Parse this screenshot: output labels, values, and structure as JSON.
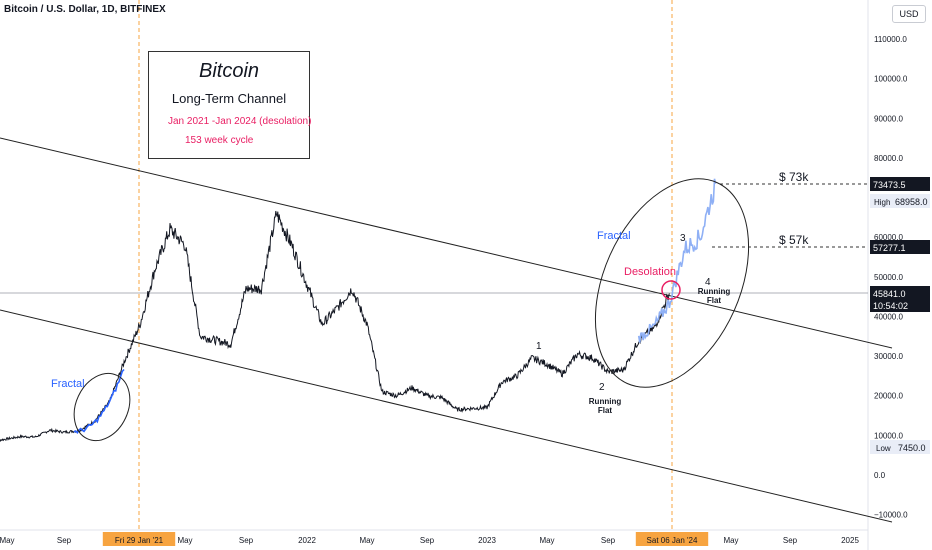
{
  "header": {
    "symbol": "Bitcoin / U.S. Dollar, 1D, BITFINEX",
    "currency": "USD"
  },
  "info_box": {
    "title": "Bitcoin",
    "subtitle": "Long-Term Channel",
    "date_range": "Jan 2021 -Jan 2024 (desolation)",
    "cycle": "153 week cycle"
  },
  "colors": {
    "candles": "#131722",
    "fractal": "#2962ff",
    "fractal_light": "#8fb0f5",
    "desolation": "#e91e63",
    "vline": "#f7a440",
    "axis_text": "#131722",
    "channel": "#222222"
  },
  "chart_data": {
    "type": "line",
    "title": "Bitcoin / U.S. Dollar, 1D, BITFINEX",
    "y_axis": {
      "ticks": [
        "110000.0",
        "100000.0",
        "90000.0",
        "80000.0",
        "70000.0",
        "60000.0",
        "50000.0",
        "40000.0",
        "30000.0",
        "20000.0",
        "10000.0",
        "0.0",
        "−10000.0"
      ],
      "tick_values": [
        110000,
        100000,
        90000,
        80000,
        70000,
        60000,
        50000,
        40000,
        30000,
        20000,
        10000,
        0,
        -10000
      ],
      "range": [
        -12500,
        125000
      ]
    },
    "x_axis": {
      "labels": [
        "May",
        "Sep",
        "Fri 29 Jan '21",
        "May",
        "Sep",
        "2022",
        "May",
        "Sep",
        "2023",
        "May",
        "Sep",
        "Sat 06 Jan '24",
        "May",
        "Sep",
        "2025"
      ],
      "label_dates": [
        "2020-05",
        "2020-09",
        "2021-01-29",
        "2021-05",
        "2021-09",
        "2022-01",
        "2022-05",
        "2022-09",
        "2023-01",
        "2023-05",
        "2023-09",
        "2024-01-06",
        "2024-05",
        "2024-09",
        "2025-01"
      ],
      "highlighted": [
        "Fri 29 Jan '21",
        "Sat 06 Jan '24"
      ]
    },
    "series": [
      {
        "role": "price",
        "x": [
          "2020-04",
          "2020-06",
          "2020-07",
          "2020-08",
          "2020-09",
          "2020-10",
          "2020-11",
          "2020-12",
          "2021-01",
          "2021-02",
          "2021-03",
          "2021-04",
          "2021-05",
          "2021-06",
          "2021-07",
          "2021-08",
          "2021-09",
          "2021-10",
          "2021-11",
          "2021-12",
          "2022-01",
          "2022-02",
          "2022-03",
          "2022-04",
          "2022-05",
          "2022-06",
          "2022-07",
          "2022-08",
          "2022-09",
          "2022-10",
          "2022-11",
          "2022-12",
          "2023-01",
          "2023-02",
          "2023-03",
          "2023-04",
          "2023-05",
          "2023-06",
          "2023-07",
          "2023-08",
          "2023-09",
          "2023-10",
          "2023-11",
          "2023-12",
          "2024-01"
        ],
        "y": [
          8500,
          9700,
          9600,
          11300,
          10800,
          11200,
          13500,
          18500,
          29000,
          38000,
          52000,
          62000,
          58000,
          35000,
          34000,
          33000,
          47000,
          47000,
          66000,
          58000,
          48000,
          38000,
          42000,
          47000,
          38000,
          21000,
          20000,
          22000,
          20000,
          19500,
          16500,
          16800,
          17000,
          23500,
          25000,
          29500,
          28000,
          25500,
          30500,
          29500,
          26000,
          26500,
          34000,
          37000,
          45800
        ]
      },
      {
        "role": "fractal",
        "x": [
          "2023-11",
          "2023-12",
          "2024-01",
          "2024-02",
          "2024-03",
          "2024-04"
        ],
        "y": [
          34500,
          37500,
          43500,
          57000,
          60000,
          73500
        ]
      }
    ],
    "channel": {
      "upper": {
        "x": [
          "2020-02",
          "2025-02"
        ],
        "y": [
          88000,
          31000
        ]
      },
      "lower": {
        "x": [
          "2020-02",
          "2025-02"
        ],
        "y": [
          43000,
          -12000
        ]
      }
    },
    "price_markers": [
      {
        "label": "73473.5",
        "value": 73473.5
      },
      {
        "label": "68958.0",
        "value": 68958.0,
        "prefix": "High"
      },
      {
        "label": "57277.1",
        "value": 57277.1
      },
      {
        "label": "45841.0",
        "value": 45841.0,
        "countdown": "10:54:02"
      },
      {
        "label": "7450.0",
        "value": 7450.0,
        "prefix": "Low"
      }
    ],
    "annotations": [
      {
        "text": "Fractal",
        "role": "fractal-left"
      },
      {
        "text": "Fractal",
        "role": "fractal-right"
      },
      {
        "text": "Desolation",
        "role": "desolation"
      },
      {
        "text": "$ 73k",
        "value": 73473.5
      },
      {
        "text": "$ 57k",
        "value": 57277.1
      },
      {
        "text": "1"
      },
      {
        "text": "2"
      },
      {
        "text": "Running",
        "note": "wave 2"
      },
      {
        "text": "Flat",
        "note": "wave 2"
      },
      {
        "text": "3"
      },
      {
        "text": "4"
      },
      {
        "text": "Running",
        "note": "wave 4"
      },
      {
        "text": "Flat",
        "note": "wave 4"
      }
    ],
    "grid": false,
    "ylim": [
      -12500,
      125000
    ]
  }
}
